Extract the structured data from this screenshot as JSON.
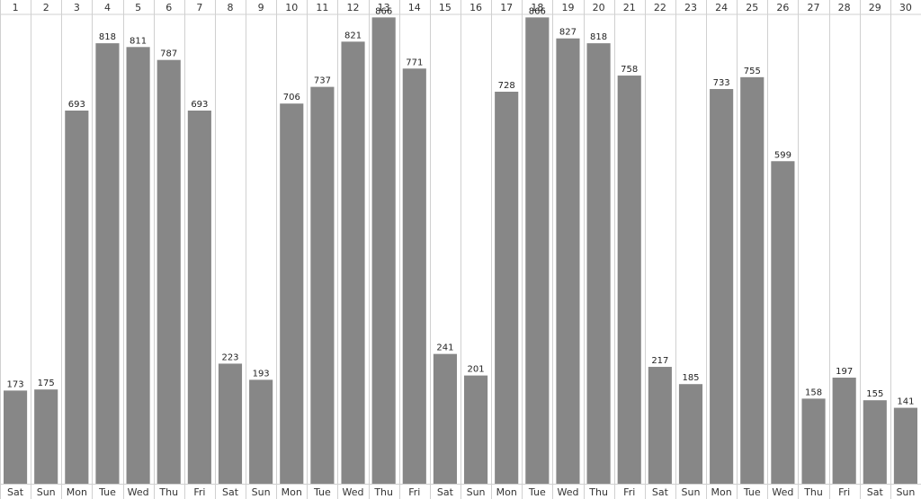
{
  "chart_data": {
    "type": "bar",
    "title": "",
    "xlabel": "",
    "ylabel": "",
    "ylim": [
      0,
      1000
    ],
    "grid": "vertical-separators",
    "legend": "none",
    "bar_color": "#878787",
    "separator_color": "#d0d0d0",
    "categories": [
      "1",
      "2",
      "3",
      "4",
      "5",
      "6",
      "7",
      "8",
      "9",
      "10",
      "11",
      "12",
      "13",
      "14",
      "15",
      "16",
      "17",
      "18",
      "19",
      "20",
      "21",
      "22",
      "23",
      "24",
      "25",
      "26",
      "27",
      "28",
      "29",
      "30"
    ],
    "weekdays": [
      "Sat",
      "Sun",
      "Mon",
      "Tue",
      "Wed",
      "Thu",
      "Fri",
      "Sat",
      "Sun",
      "Mon",
      "Tue",
      "Wed",
      "Thu",
      "Fri",
      "Sat",
      "Sun",
      "Mon",
      "Tue",
      "Wed",
      "Thu",
      "Fri",
      "Sat",
      "Sun",
      "Mon",
      "Tue",
      "Wed",
      "Thu",
      "Fri",
      "Sat",
      "Sun"
    ],
    "values": [
      173,
      175,
      693,
      818,
      811,
      787,
      693,
      223,
      193,
      706,
      737,
      821,
      866,
      771,
      241,
      201,
      728,
      866,
      827,
      818,
      758,
      217,
      185,
      733,
      755,
      599,
      158,
      197,
      155,
      141
    ]
  }
}
